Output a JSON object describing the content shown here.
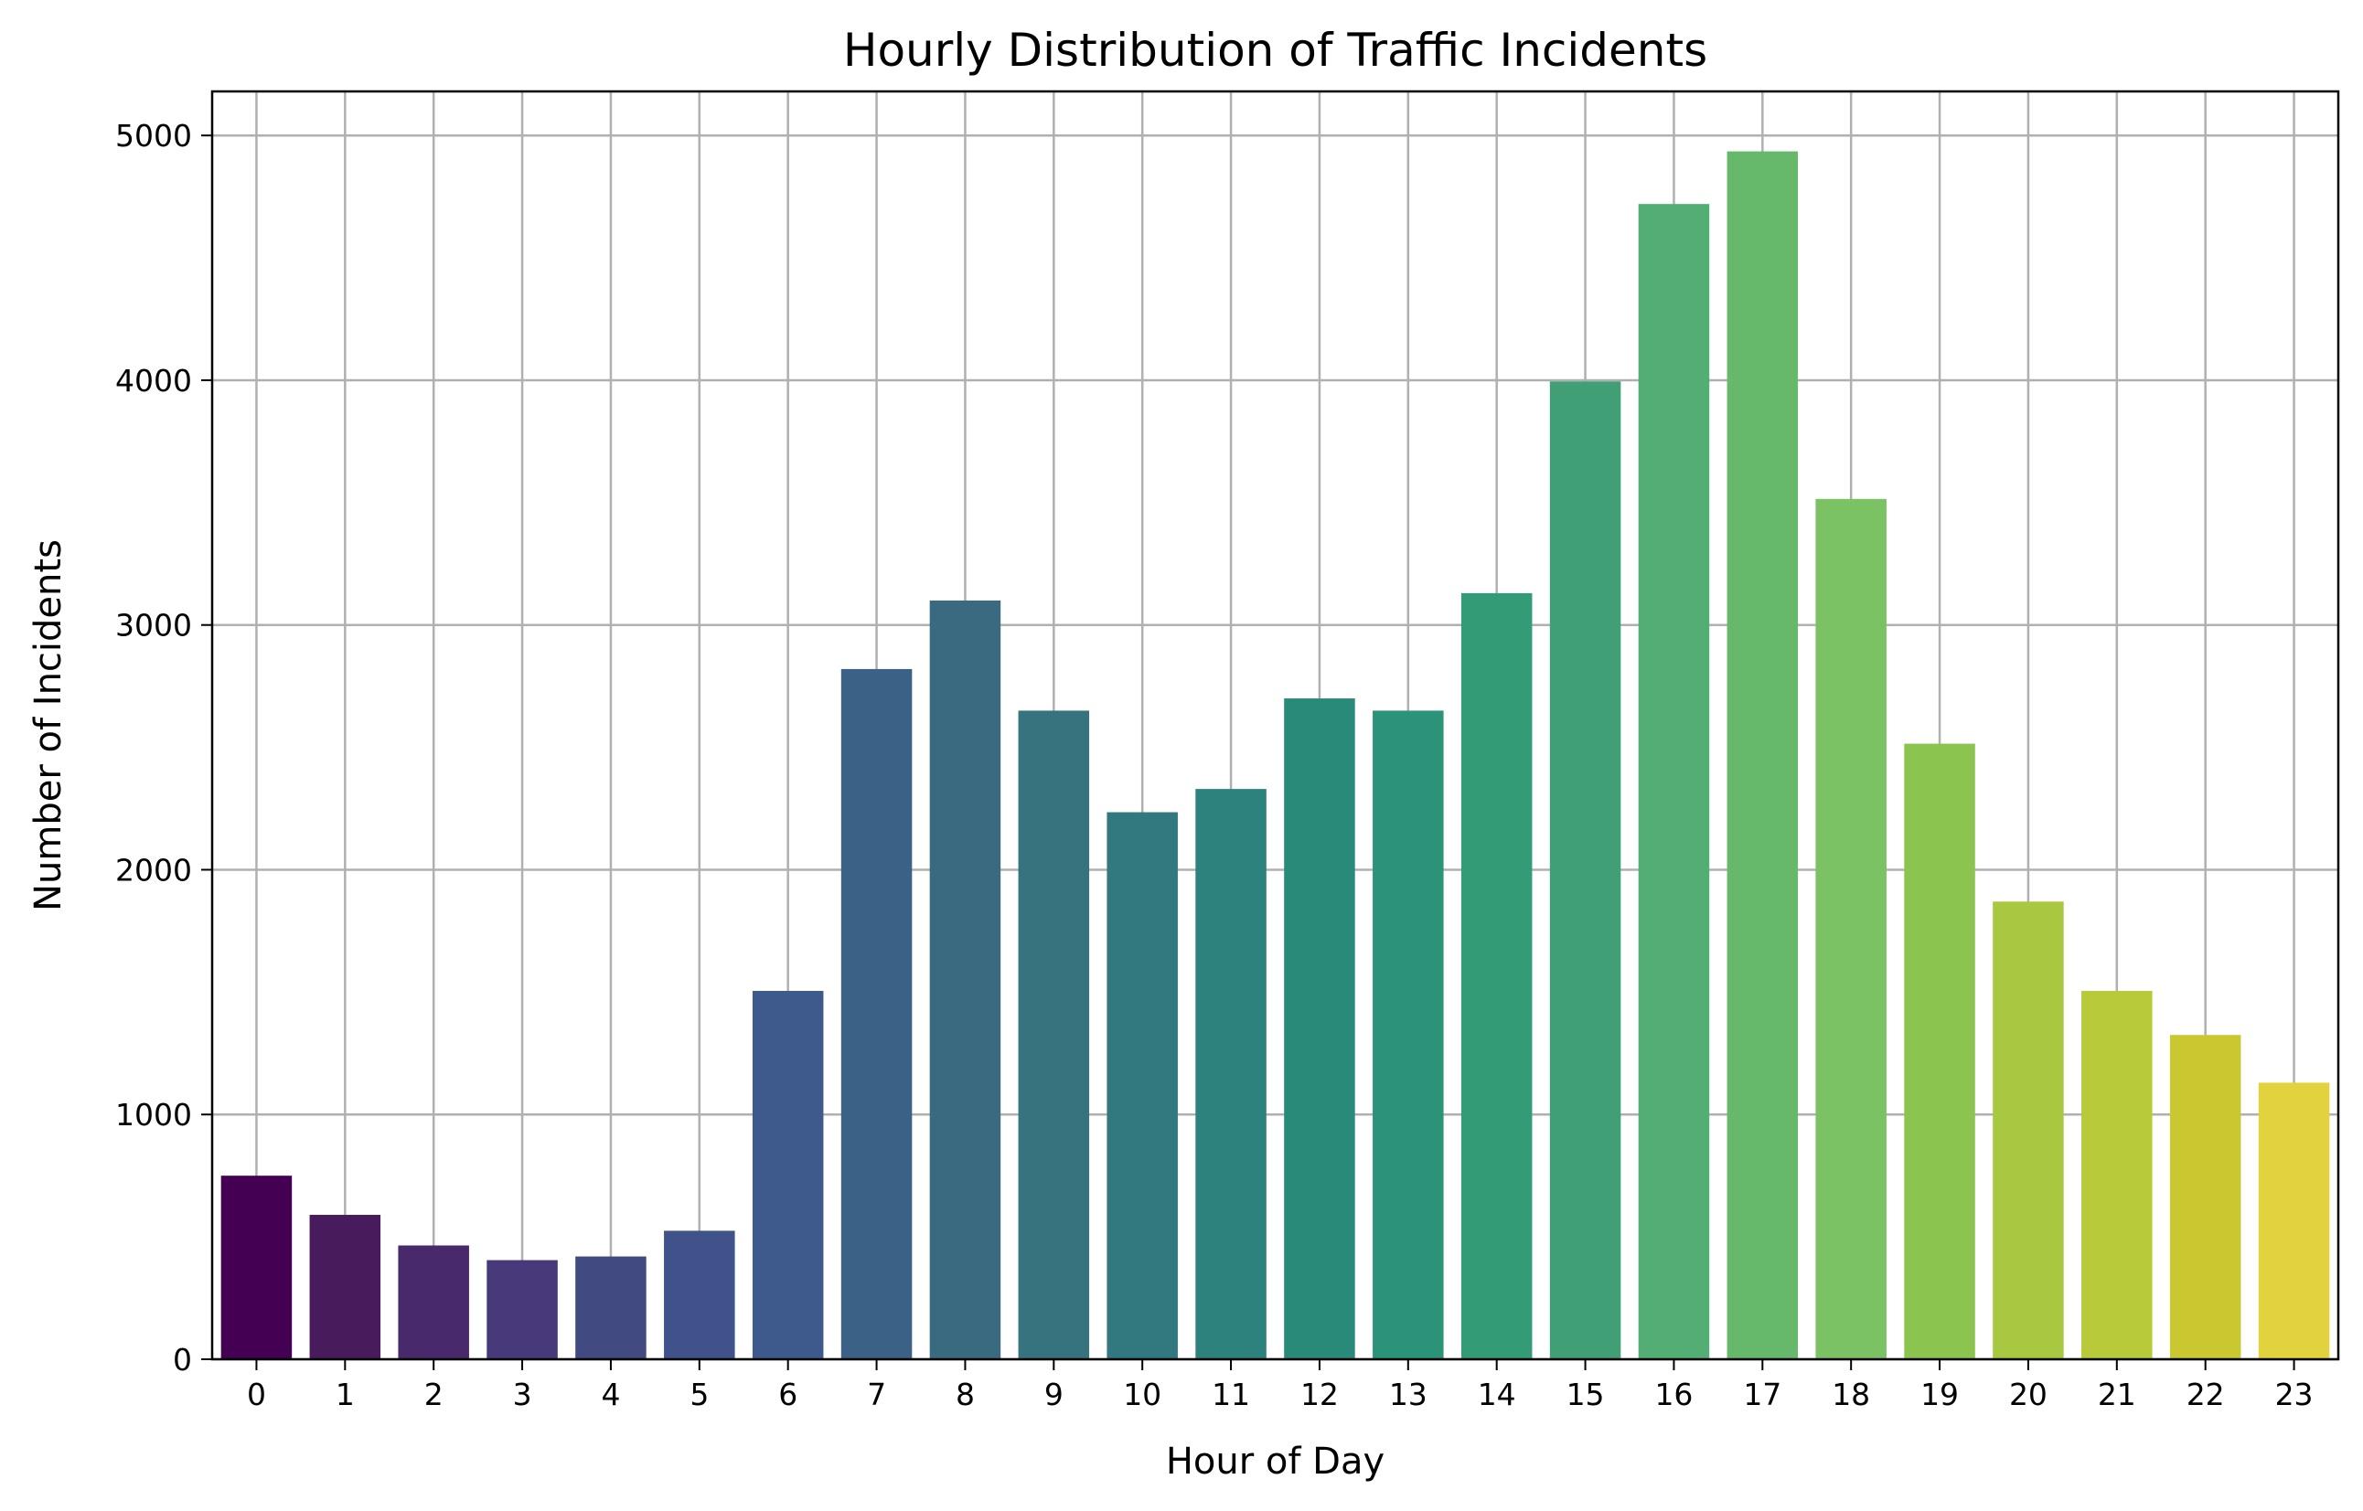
{
  "chart_data": {
    "type": "bar",
    "title": "Hourly Distribution of Traffic Incidents",
    "xlabel": "Hour of Day",
    "ylabel": "Number of Incidents",
    "categories": [
      "0",
      "1",
      "2",
      "3",
      "4",
      "5",
      "6",
      "7",
      "8",
      "9",
      "10",
      "11",
      "12",
      "13",
      "14",
      "15",
      "16",
      "17",
      "18",
      "19",
      "20",
      "21",
      "22",
      "23"
    ],
    "values": [
      750,
      590,
      465,
      405,
      420,
      525,
      1505,
      2820,
      3100,
      2650,
      2235,
      2330,
      2700,
      2650,
      3130,
      3995,
      4720,
      4935,
      3515,
      2515,
      1870,
      1505,
      1325,
      1130
    ],
    "ylim": [
      0,
      5180
    ],
    "yticks": [
      0,
      1000,
      2000,
      3000,
      4000,
      5000
    ],
    "grid": true,
    "legend": "none",
    "palette": "viridis",
    "colors": [
      "#440154",
      "#471b5c",
      "#482a6c",
      "#47397a",
      "#424a82",
      "#3f528a",
      "#3e5a8c",
      "#3b6286",
      "#396a80",
      "#36737f",
      "#31797f",
      "#2e827d",
      "#2a8a7a",
      "#2b9378",
      "#349b77",
      "#409f74",
      "#52ae73",
      "#66b96a",
      "#7bc264",
      "#8cc450",
      "#a7c840",
      "#b8c939",
      "#c9c830",
      "#e2d23e"
    ]
  }
}
